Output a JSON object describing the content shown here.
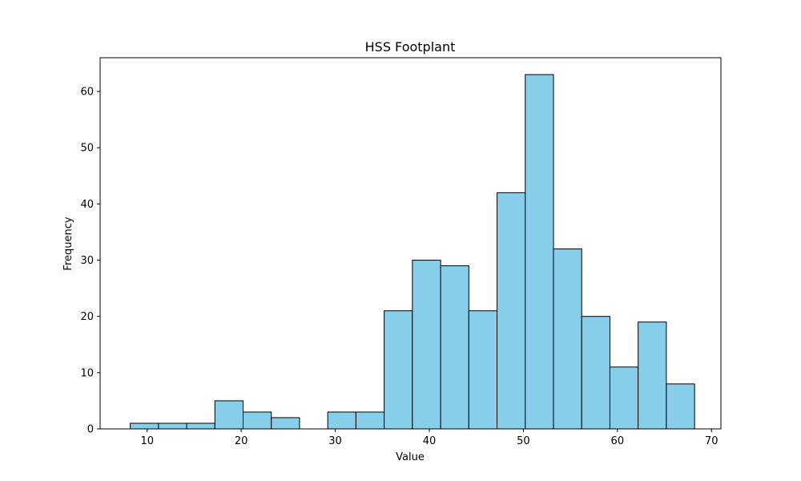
{
  "chart_data": {
    "type": "bar",
    "title": "HSS Footplant",
    "xlabel": "Value",
    "ylabel": "Frequency",
    "xlim": [
      5,
      71
    ],
    "ylim": [
      0,
      66
    ],
    "xticks": [
      10,
      20,
      30,
      40,
      50,
      60,
      70
    ],
    "yticks": [
      0,
      10,
      20,
      30,
      40,
      50,
      60
    ],
    "grid": false,
    "bar_color": "#87ceeb",
    "edge_color": "#000000",
    "bin_start": 8.2,
    "bin_width": 3.0,
    "values": [
      1,
      1,
      1,
      5,
      3,
      2,
      0,
      3,
      3,
      21,
      30,
      29,
      21,
      42,
      63,
      32,
      20,
      11,
      19,
      8
    ]
  }
}
